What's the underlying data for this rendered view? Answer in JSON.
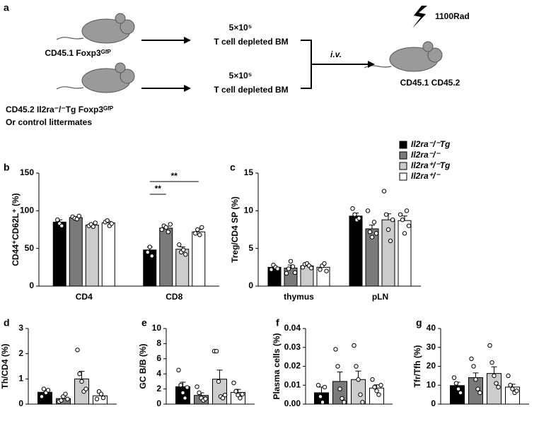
{
  "diagram": {
    "label": "a",
    "donor1": "CD45.1 Foxp3ᴳᶠᴾ",
    "donor2": "CD45.2 Il2ra⁻/⁻Tg Foxp3ᴳᶠᴾ",
    "donor2_note": "Or control littermates",
    "dose1": "5×10⁵",
    "cells1": "T cell depleted BM",
    "dose2": "5×10⁵",
    "cells2": "T cell depleted BM",
    "route": "i.v.",
    "irradiation": "1100Rad",
    "recipient": "CD45.1 CD45.2"
  },
  "chart_data": [
    {
      "type": "bar",
      "label": "b",
      "ylabel": "CD44⁺CD62L⁺ (%)",
      "categories": [
        "CD4",
        "CD8"
      ],
      "ylim": [
        0,
        150
      ],
      "yticks": [
        0,
        50,
        100,
        150
      ],
      "annotations": [
        "**",
        "**"
      ],
      "series": [
        {
          "color": "#000000",
          "values": [
            85,
            48
          ],
          "errors": [
            3,
            4
          ],
          "points": [
            [
              88,
              83,
              80
            ],
            [
              45,
              52,
              40
            ]
          ]
        },
        {
          "color": "#7a7a7a",
          "values": [
            91,
            77
          ],
          "errors": [
            1,
            2
          ],
          "points": [
            [
              92,
              90,
              89,
              93
            ],
            [
              75,
              80,
              78,
              72,
              82
            ]
          ]
        },
        {
          "color": "#cccccc",
          "values": [
            81,
            49
          ],
          "errors": [
            2,
            3
          ],
          "points": [
            [
              80,
              82,
              79,
              84
            ],
            [
              55,
              45,
              48,
              42
            ]
          ]
        },
        {
          "color": "#ffffff",
          "values": [
            84,
            72
          ],
          "errors": [
            2,
            3
          ],
          "points": [
            [
              85,
              87,
              80,
              83
            ],
            [
              70,
              75,
              68,
              78
            ]
          ]
        }
      ]
    },
    {
      "type": "bar",
      "label": "c",
      "ylabel": "Treg/CD4 SP (%)",
      "categories": [
        "thymus",
        "pLN"
      ],
      "ylim": [
        0,
        15
      ],
      "yticks": [
        0,
        5,
        10,
        15
      ],
      "series": [
        {
          "name": "Il2ra⁻/⁻Tg",
          "color": "#000000",
          "values": [
            2.5,
            9.3
          ],
          "errors": [
            0.2,
            0.4
          ],
          "points": [
            [
              2.2,
              2.8,
              2.5,
              2.3
            ],
            [
              10.3,
              9.5,
              8.8,
              9.0
            ]
          ]
        },
        {
          "name": "Il2ra⁻/⁻",
          "color": "#7a7a7a",
          "values": [
            2.4,
            7.6
          ],
          "errors": [
            0.4,
            0.5
          ],
          "points": [
            [
              1.7,
              2.3,
              3.3,
              2.6,
              1.8
            ],
            [
              10,
              7.2,
              6.5,
              8.5,
              7
            ]
          ]
        },
        {
          "name": "Il2ra⁺/⁻Tg",
          "color": "#cccccc",
          "values": [
            2.7,
            8.8
          ],
          "errors": [
            0.2,
            0.8
          ],
          "points": [
            [
              2.5,
              2.9,
              3.0,
              2.7,
              2.4
            ],
            [
              12.6,
              9.5,
              7.5,
              6,
              8.8
            ]
          ]
        },
        {
          "name": "Il2ra⁺/⁻",
          "color": "#ffffff",
          "values": [
            2.5,
            8.7
          ],
          "errors": [
            0.3,
            0.6
          ],
          "points": [
            [
              2.2,
              2.7,
              3.0,
              2.0
            ],
            [
              9.5,
              8.8,
              7,
              10,
              8
            ]
          ]
        }
      ]
    },
    {
      "type": "bar",
      "label": "d",
      "ylabel": "Th/CD4 (%)",
      "ylim": [
        0,
        3
      ],
      "yticks": [
        0,
        1,
        2,
        3
      ],
      "series": [
        {
          "color": "#000000",
          "values": [
            0.47
          ],
          "errors": [
            0.1
          ],
          "points": [
            [
              0.3,
              0.6,
              0.45,
              0.55
            ]
          ]
        },
        {
          "color": "#7a7a7a",
          "values": [
            0.22
          ],
          "errors": [
            0.08
          ],
          "points": [
            [
              0.1,
              0.15,
              0.3,
              0.4,
              0.2
            ]
          ]
        },
        {
          "color": "#cccccc",
          "values": [
            1.0
          ],
          "errors": [
            0.3
          ],
          "points": [
            [
              2.15,
              1.2,
              0.9,
              0.5,
              0.6
            ]
          ]
        },
        {
          "color": "#ffffff",
          "values": [
            0.33
          ],
          "errors": [
            0.1
          ],
          "points": [
            [
              0.2,
              0.5,
              0.4,
              0.25
            ]
          ]
        }
      ]
    },
    {
      "type": "bar",
      "label": "e",
      "ylabel": "GC B/B (%)",
      "ylim": [
        0,
        10
      ],
      "yticks": [
        0,
        2,
        4,
        6,
        8,
        10
      ],
      "series": [
        {
          "color": "#000000",
          "values": [
            2.3
          ],
          "errors": [
            0.6
          ],
          "points": [
            [
              4.5,
              2.5,
              1.5,
              0.8,
              2.2
            ]
          ]
        },
        {
          "color": "#7a7a7a",
          "values": [
            1.15
          ],
          "errors": [
            0.35
          ],
          "points": [
            [
              2.3,
              1.5,
              0.8,
              0.5,
              0.7
            ]
          ]
        },
        {
          "color": "#cccccc",
          "values": [
            3.3
          ],
          "errors": [
            1.2
          ],
          "points": [
            [
              7,
              7,
              3,
              1,
              0.8,
              1.2
            ]
          ]
        },
        {
          "color": "#ffffff",
          "values": [
            1.55
          ],
          "errors": [
            0.4
          ],
          "points": [
            [
              2.8,
              1.7,
              1.2,
              0.8,
              1.3
            ]
          ]
        }
      ]
    },
    {
      "type": "bar",
      "label": "f",
      "ylabel": "Plasma cells (%)",
      "ylim": [
        0,
        0.04
      ],
      "yticks": [
        {
          "value": 0,
          "label": "0.00"
        },
        0.01,
        {
          "value": 0.02,
          "label": "0.02"
        },
        {
          "value": 0.03,
          "label": "0.03"
        },
        {
          "value": 0.04,
          "label": "0.04"
        }
      ],
      "series": [
        {
          "color": "#000000",
          "values": [
            0.006
          ],
          "errors": [
            0.003
          ],
          "points": [
            [
              0.01,
              0.004,
              0.001,
              0.009
            ]
          ]
        },
        {
          "color": "#7a7a7a",
          "values": [
            0.012
          ],
          "errors": [
            0.005
          ],
          "points": [
            [
              0.029,
              0.02,
              0.008,
              0.003,
              0.001
            ]
          ]
        },
        {
          "color": "#cccccc",
          "values": [
            0.013
          ],
          "errors": [
            0.0045
          ],
          "points": [
            [
              0.031,
              0.02,
              0.013,
              0.005,
              0.001
            ]
          ]
        },
        {
          "color": "#ffffff",
          "values": [
            0.0085
          ],
          "errors": [
            0.0017
          ],
          "points": [
            [
              0.013,
              0.009,
              0.007,
              0.005,
              0.01
            ]
          ]
        }
      ]
    },
    {
      "type": "bar",
      "label": "g",
      "ylabel": "Tfr/Tfh (%)",
      "ylim": [
        0,
        40
      ],
      "yticks": [
        0,
        10,
        20,
        30,
        40
      ],
      "series": [
        {
          "color": "#000000",
          "values": [
            9.8
          ],
          "errors": [
            1.8
          ],
          "points": [
            [
              14,
              11,
              8,
              6
            ]
          ]
        },
        {
          "color": "#7a7a7a",
          "values": [
            14
          ],
          "errors": [
            2.5
          ],
          "points": [
            [
              24,
              20,
              13,
              8,
              6
            ]
          ]
        },
        {
          "color": "#cccccc",
          "values": [
            16.2
          ],
          "errors": [
            3.5
          ],
          "points": [
            [
              31,
              22,
              15,
              11,
              9
            ]
          ]
        },
        {
          "color": "#ffffff",
          "values": [
            9
          ],
          "errors": [
            1.5
          ],
          "points": [
            [
              15,
              10,
              8,
              6,
              7
            ]
          ]
        }
      ]
    }
  ]
}
